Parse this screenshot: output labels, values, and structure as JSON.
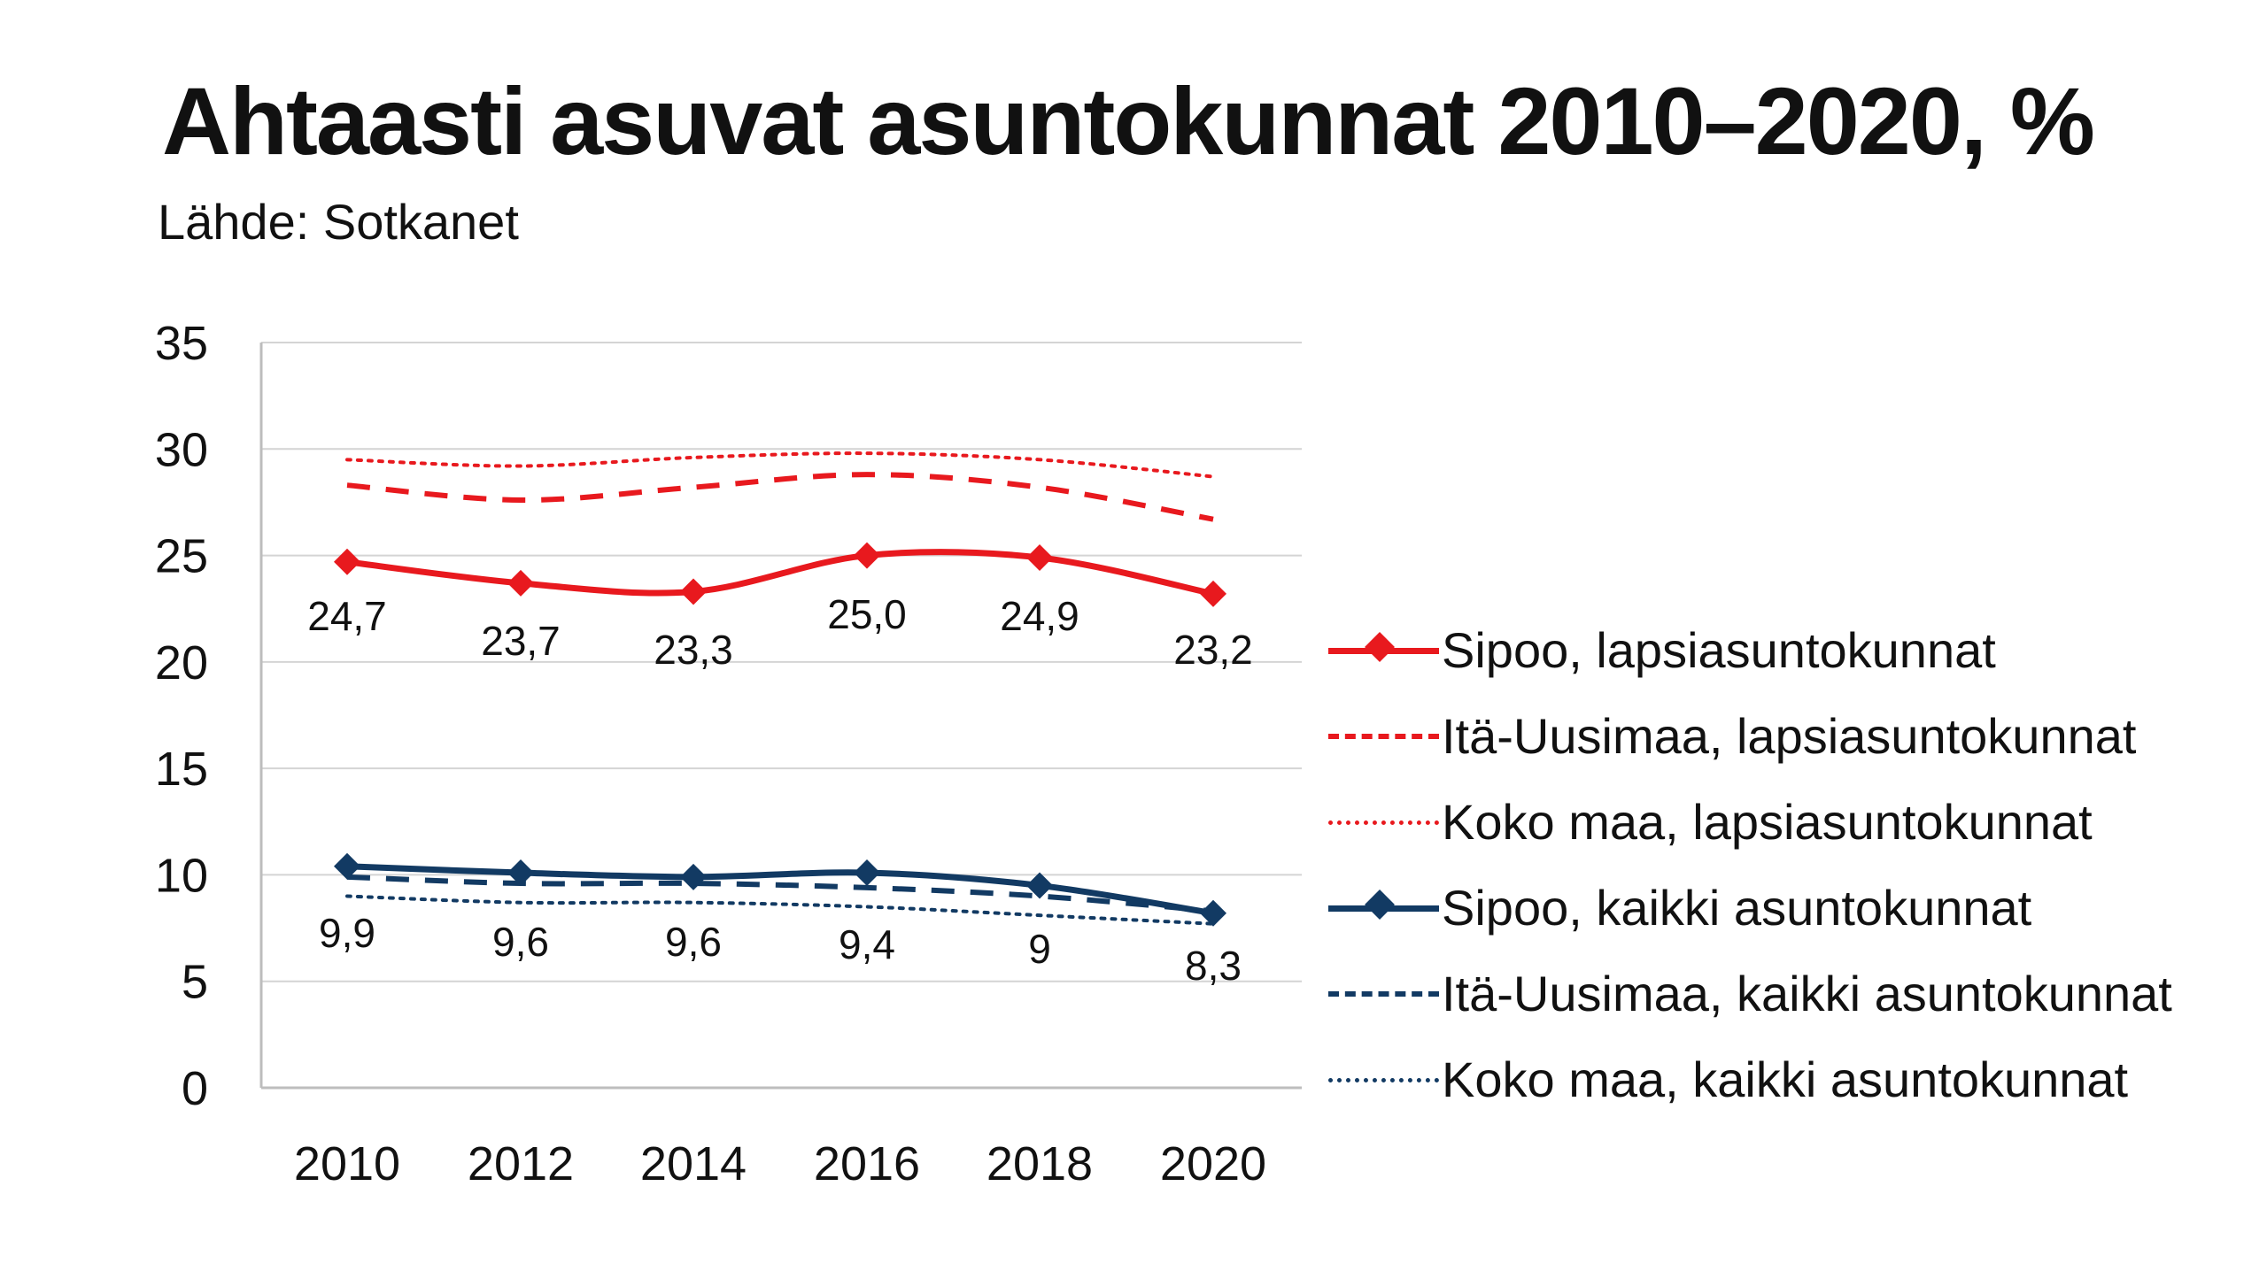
{
  "title": "Ahtaasti asuvat asuntokunnat 2010–2020, %",
  "subtitle": "Lähde: Sotkanet",
  "chart_data": {
    "type": "line",
    "title": "Ahtaasti asuvat asuntokunnat 2010–2020, %",
    "subtitle": "Lähde: Sotkanet",
    "xlabel": "",
    "ylabel": "",
    "categories": [
      "2010",
      "2012",
      "2014",
      "2016",
      "2018",
      "2020"
    ],
    "ylim": [
      0,
      35
    ],
    "yticks": [
      "0",
      "5",
      "10",
      "15",
      "20",
      "25",
      "30",
      "35"
    ],
    "grid": true,
    "legend_position": "right",
    "series": [
      {
        "name": "Sipoo, lapsiasuntokunnat",
        "values": [
          24.7,
          23.7,
          23.3,
          25.0,
          24.9,
          23.2
        ],
        "labels": [
          "24,7",
          "23,7",
          "23,3",
          "25,0",
          "24,9",
          "23,2"
        ],
        "color": "#e8191e",
        "style": "solid",
        "marker": "diamond"
      },
      {
        "name": "Itä-Uusimaa, lapsiasuntokunnat",
        "values": [
          28.3,
          27.6,
          28.2,
          28.8,
          28.2,
          26.7
        ],
        "color": "#e8191e",
        "style": "dashed",
        "marker": "none"
      },
      {
        "name": "Koko maa, lapsiasuntokunnat",
        "values": [
          29.5,
          29.2,
          29.6,
          29.8,
          29.5,
          28.7
        ],
        "color": "#e8191e",
        "style": "dotted",
        "marker": "none"
      },
      {
        "name": "Sipoo, kaikki asuntokunnat",
        "values": [
          10.4,
          10.1,
          9.9,
          10.1,
          9.5,
          8.2
        ],
        "color": "#123a63",
        "style": "solid",
        "marker": "diamond"
      },
      {
        "name": "Itä-Uusimaa, kaikki asuntokunnat",
        "values": [
          9.9,
          9.6,
          9.6,
          9.4,
          9.0,
          8.3
        ],
        "labels": [
          "9,9",
          "9,6",
          "9,6",
          "9,4",
          "9",
          "8,3"
        ],
        "color": "#123a63",
        "style": "dashed",
        "marker": "none"
      },
      {
        "name": "Koko maa, kaikki asuntokunnat",
        "values": [
          9.0,
          8.7,
          8.7,
          8.5,
          8.1,
          7.7
        ],
        "color": "#123a63",
        "style": "dotted",
        "marker": "none"
      }
    ]
  }
}
